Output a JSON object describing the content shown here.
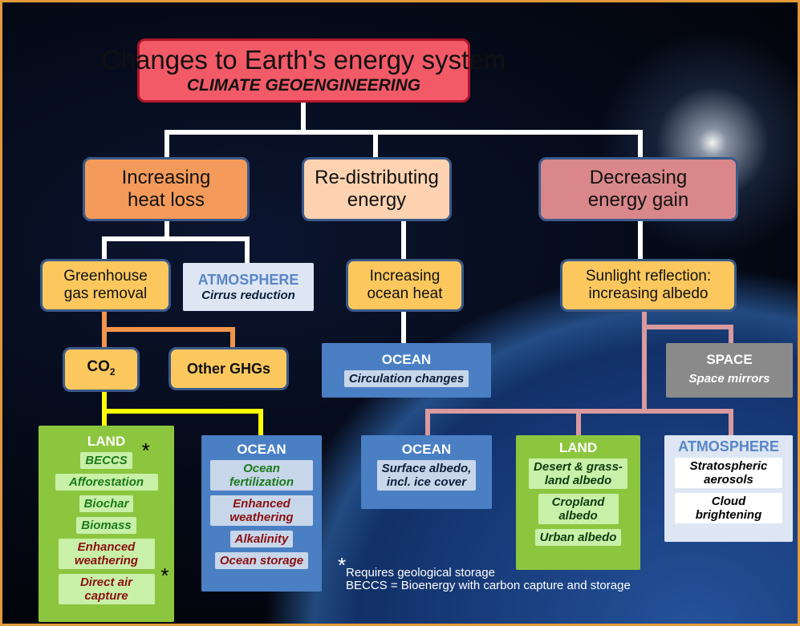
{
  "title": {
    "line1": "Changes to Earth's energy system",
    "line2": "CLIMATE GEOENGINEERING"
  },
  "branches": [
    {
      "lines": [
        "Increasing",
        "heat loss"
      ]
    },
    {
      "lines": [
        "Re-distributing",
        "energy"
      ]
    },
    {
      "lines": [
        "Decreasing",
        "energy gain"
      ]
    }
  ],
  "nodes": {
    "ghg_removal": {
      "lines": [
        "Greenhouse",
        "gas removal"
      ]
    },
    "cirrus": {
      "heading": "ATMOSPHERE",
      "text": "Cirrus reduction"
    },
    "ocean_heat": {
      "lines": [
        "Increasing",
        "ocean heat"
      ]
    },
    "sunlight": {
      "lines": [
        "Sunlight reflection:",
        "increasing albedo"
      ]
    },
    "co2": {
      "text": "CO",
      "subscript": "2"
    },
    "other_ghgs": {
      "text": "Other GHGs"
    },
    "circulation": {
      "heading": "OCEAN",
      "text": "Circulation changes"
    },
    "space": {
      "heading": "SPACE",
      "text": "Space mirrors"
    }
  },
  "groups": [
    {
      "heading": "LAND",
      "items": [
        {
          "lines": [
            "BECCS"
          ],
          "marker": "*"
        },
        {
          "lines": [
            "Afforestation"
          ]
        },
        {
          "lines": [
            "Biochar"
          ]
        },
        {
          "lines": [
            "Biomass"
          ]
        },
        {
          "lines": [
            "Enhanced",
            "weathering"
          ]
        },
        {
          "lines": [
            "Direct air",
            "capture"
          ],
          "marker": "*"
        }
      ]
    },
    {
      "heading": "OCEAN",
      "items": [
        {
          "lines": [
            "Ocean",
            "fertilization"
          ]
        },
        {
          "lines": [
            "Enhanced",
            "weathering"
          ]
        },
        {
          "lines": [
            "Alkalinity"
          ]
        },
        {
          "lines": [
            "Ocean storage"
          ]
        }
      ]
    },
    {
      "heading": "OCEAN",
      "items": [
        {
          "lines": [
            "Surface albedo,",
            "incl. ice cover"
          ]
        }
      ]
    },
    {
      "heading": "LAND",
      "items": [
        {
          "lines": [
            "Desert & grass-",
            "land albedo"
          ]
        },
        {
          "lines": [
            "Cropland",
            "albedo"
          ]
        },
        {
          "lines": [
            "Urban albedo"
          ]
        }
      ]
    },
    {
      "heading": "ATMOSPHERE",
      "items": [
        {
          "lines": [
            "Stratospheric",
            "aerosols"
          ]
        },
        {
          "lines": [
            "Cloud",
            "brightening"
          ]
        }
      ]
    }
  ],
  "footnote": {
    "marker": "*",
    "lines": [
      "Requires geological storage",
      "BECCS = Bioenergy with carbon capture and storage"
    ]
  }
}
